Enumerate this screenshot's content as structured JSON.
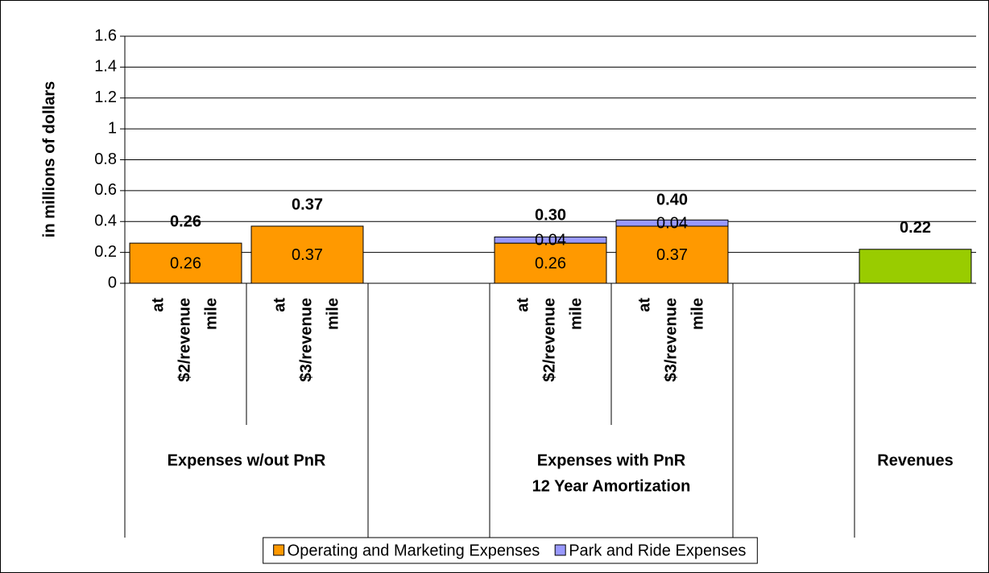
{
  "chart_data": {
    "type": "stacked_bar",
    "y_label": "in millions of dollars",
    "categories": [
      "at $2/revenue mile",
      "at $3/revenue mile",
      null,
      "at $2/revenue mile",
      "at $3/revenue mile",
      null,
      null
    ],
    "groups": [
      {
        "label": [
          "Expenses w/out PnR"
        ],
        "from": 0,
        "to": 1
      },
      {
        "label": [
          "Expenses with PnR",
          "12 Year Amortization"
        ],
        "from": 3,
        "to": 4
      },
      {
        "label": [
          "Revenues"
        ],
        "from": 6,
        "to": 6
      }
    ],
    "series": [
      {
        "name": "Operating and Marketing Expenses",
        "color": "#ff9900",
        "values": [
          0.26,
          0.37,
          null,
          0.26,
          0.37,
          null,
          null
        ]
      },
      {
        "name": "Park and Ride Expenses",
        "color": "#9999ff",
        "values": [
          null,
          null,
          null,
          0.04,
          0.04,
          null,
          null
        ]
      },
      {
        "color": "#99cc00",
        "inside_labels": false,
        "values": [
          null,
          null,
          null,
          null,
          null,
          null,
          0.22
        ]
      }
    ],
    "totals": {
      "values": [
        0.26,
        0.37,
        null,
        0.3,
        0.4,
        null,
        0.22
      ],
      "value_labels": [
        "0.26",
        "0.37",
        null,
        "0.30",
        "0.40",
        null,
        "0.22"
      ]
    },
    "ylim": [
      0,
      1.6
    ],
    "yticks": [
      0,
      0.2,
      0.4,
      0.6,
      0.8,
      1,
      1.2,
      1.4,
      1.6
    ],
    "grid": true,
    "legend": "bottom"
  }
}
